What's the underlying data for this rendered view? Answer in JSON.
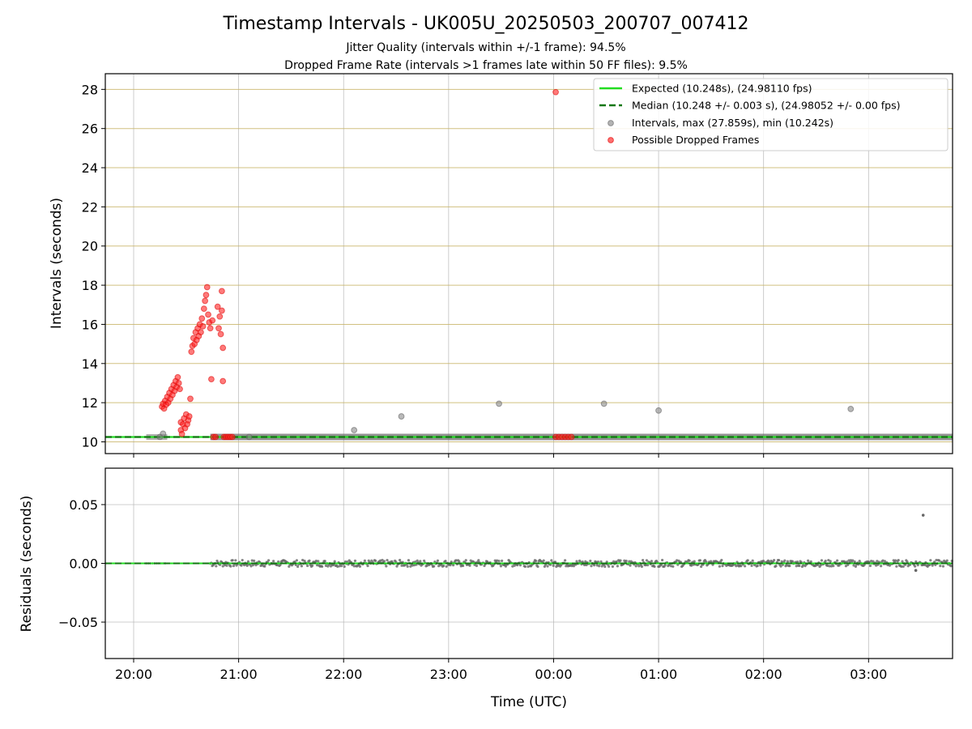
{
  "chart_data": [
    {
      "type": "scatter",
      "title": "Timestamp Intervals - UK005U_20250503_200707_007412",
      "subtitle_1": "Jitter Quality (intervals within +/-1 frame): 94.5%",
      "subtitle_2": "Dropped Frame Rate (intervals >1 frames late within 50 FF files): 9.5%",
      "xlabel": "",
      "ylabel": "Intervals (seconds)",
      "xlim_hours": [
        19.73,
        27.8
      ],
      "ylim": [
        9.4,
        28.8
      ],
      "yticks": [
        "10",
        "12",
        "14",
        "16",
        "18",
        "20",
        "22",
        "24",
        "26",
        "28"
      ],
      "ytick_values": [
        10,
        12,
        14,
        16,
        18,
        20,
        22,
        24,
        26,
        28
      ],
      "grid": true,
      "legend_position": "upper right",
      "expected_value": 10.248,
      "median_value": 10.248,
      "series": [
        {
          "name": "Expected (10.248s), (24.98110 fps)",
          "kind": "hline",
          "color": "#22dd22"
        },
        {
          "name": "Median (10.248 +/- 0.003 s), (24.98052 +/- 0.00 fps)",
          "kind": "hline-dashed",
          "color": "#117711"
        },
        {
          "name": "Intervals, max (27.859s), min (10.242s)",
          "kind": "scatter",
          "color": "#808080",
          "points": [
            [
              20.25,
              10.25
            ],
            [
              20.28,
              10.42
            ],
            [
              21.1,
              10.25
            ],
            [
              22.1,
              10.6
            ],
            [
              22.55,
              11.3
            ],
            [
              23.48,
              11.95
            ],
            [
              24.48,
              11.95
            ],
            [
              25.0,
              11.6
            ],
            [
              26.83,
              11.68
            ]
          ]
        },
        {
          "name": "Possible Dropped Frames",
          "kind": "scatter",
          "color": "#ff2222",
          "points": [
            [
              20.27,
              11.8
            ],
            [
              20.28,
              11.95
            ],
            [
              20.29,
              11.7
            ],
            [
              20.3,
              12.1
            ],
            [
              20.31,
              11.9
            ],
            [
              20.32,
              12.3
            ],
            [
              20.33,
              12.0
            ],
            [
              20.34,
              12.5
            ],
            [
              20.35,
              12.2
            ],
            [
              20.36,
              12.7
            ],
            [
              20.37,
              12.4
            ],
            [
              20.38,
              12.9
            ],
            [
              20.39,
              12.6
            ],
            [
              20.4,
              13.1
            ],
            [
              20.41,
              12.8
            ],
            [
              20.42,
              13.3
            ],
            [
              20.43,
              13.0
            ],
            [
              20.44,
              12.7
            ],
            [
              20.45,
              10.6
            ],
            [
              20.45,
              11.0
            ],
            [
              20.46,
              10.4
            ],
            [
              20.47,
              10.9
            ],
            [
              20.48,
              11.2
            ],
            [
              20.49,
              10.7
            ],
            [
              20.5,
              11.4
            ],
            [
              20.51,
              10.9
            ],
            [
              20.52,
              11.1
            ],
            [
              20.53,
              11.3
            ],
            [
              20.54,
              12.2
            ],
            [
              20.55,
              14.6
            ],
            [
              20.56,
              14.9
            ],
            [
              20.57,
              15.3
            ],
            [
              20.58,
              15.0
            ],
            [
              20.59,
              15.6
            ],
            [
              20.6,
              15.2
            ],
            [
              20.61,
              15.8
            ],
            [
              20.62,
              15.4
            ],
            [
              20.63,
              16.0
            ],
            [
              20.64,
              15.6
            ],
            [
              20.65,
              16.3
            ],
            [
              20.66,
              15.9
            ],
            [
              20.67,
              16.8
            ],
            [
              20.68,
              17.2
            ],
            [
              20.69,
              17.5
            ],
            [
              20.7,
              17.9
            ],
            [
              20.71,
              16.5
            ],
            [
              20.72,
              16.1
            ],
            [
              20.73,
              15.8
            ],
            [
              20.74,
              13.2
            ],
            [
              20.75,
              16.2
            ],
            [
              20.76,
              10.25
            ],
            [
              20.78,
              10.25
            ],
            [
              20.8,
              16.9
            ],
            [
              20.81,
              15.8
            ],
            [
              20.82,
              16.4
            ],
            [
              20.83,
              15.5
            ],
            [
              20.84,
              16.7
            ],
            [
              20.84,
              17.7
            ],
            [
              20.85,
              14.8
            ],
            [
              20.85,
              13.1
            ],
            [
              20.86,
              10.25
            ],
            [
              20.88,
              10.25
            ],
            [
              20.9,
              10.25
            ],
            [
              20.92,
              10.25
            ],
            [
              20.94,
              10.25
            ],
            [
              24.02,
              27.86
            ],
            [
              24.02,
              10.25
            ],
            [
              24.05,
              10.25
            ],
            [
              24.08,
              10.25
            ],
            [
              24.11,
              10.25
            ],
            [
              24.14,
              10.25
            ],
            [
              24.17,
              10.25
            ]
          ]
        }
      ]
    },
    {
      "type": "scatter",
      "title": "",
      "xlabel": "Time (UTC)",
      "ylabel": "Residuals (seconds)",
      "xlim_hours": [
        19.73,
        27.8
      ],
      "ylim": [
        -0.081,
        0.081
      ],
      "xticks": [
        "20:00",
        "21:00",
        "22:00",
        "23:00",
        "00:00",
        "01:00",
        "02:00",
        "03:00"
      ],
      "xtick_hours": [
        20,
        21,
        22,
        23,
        24,
        25,
        26,
        27
      ],
      "yticks": [
        "0.05",
        "0.00",
        "−0.05"
      ],
      "ytick_values": [
        0.05,
        0.0,
        -0.05
      ],
      "grid": true,
      "series": [
        {
          "name": "Residuals",
          "kind": "scatter-band",
          "color": "#666666",
          "x_start": 20.73,
          "x_end": 27.8,
          "spread": 0.0028,
          "outliers": [
            [
              27.52,
              0.041
            ],
            [
              27.45,
              -0.006
            ]
          ]
        }
      ]
    }
  ]
}
